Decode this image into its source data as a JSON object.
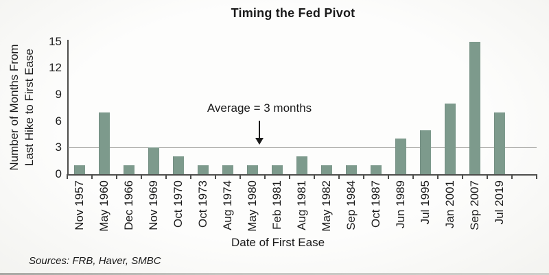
{
  "chart_data": {
    "type": "bar",
    "title": "Timing the Fed Pivot",
    "xlabel": "Date of First Ease",
    "ylabel": "Number of Months From\nLast Hike to First Ease",
    "categories": [
      "Nov 1957",
      "May 1960",
      "Dec 1966",
      "Nov 1969",
      "Oct 1970",
      "Oct 1973",
      "Aug 1974",
      "May 1980",
      "Feb 1981",
      "Aug 1981",
      "May 1982",
      "Sep 1984",
      "Oct 1987",
      "Jun 1989",
      "Jul 1995",
      "Jan 2001",
      "Sep 2007",
      "Jul 2019"
    ],
    "values": [
      1,
      7,
      1,
      3,
      2,
      1,
      1,
      1,
      1,
      2,
      1,
      1,
      1,
      4,
      5,
      8,
      15,
      7
    ],
    "yticks": [
      0,
      3,
      6,
      9,
      12,
      15
    ],
    "ylim": [
      0,
      15
    ],
    "grid": false,
    "legend": false,
    "average_line": {
      "value": 3,
      "label": "Average = 3 months"
    },
    "colors": {
      "bar": "#7d9a8c",
      "average_line": "#8f8f8b",
      "axis": "#4d4d4b",
      "text": "#1b1b1b"
    }
  },
  "footer": {
    "sources": "Sources: FRB, Haver, SMBC"
  }
}
